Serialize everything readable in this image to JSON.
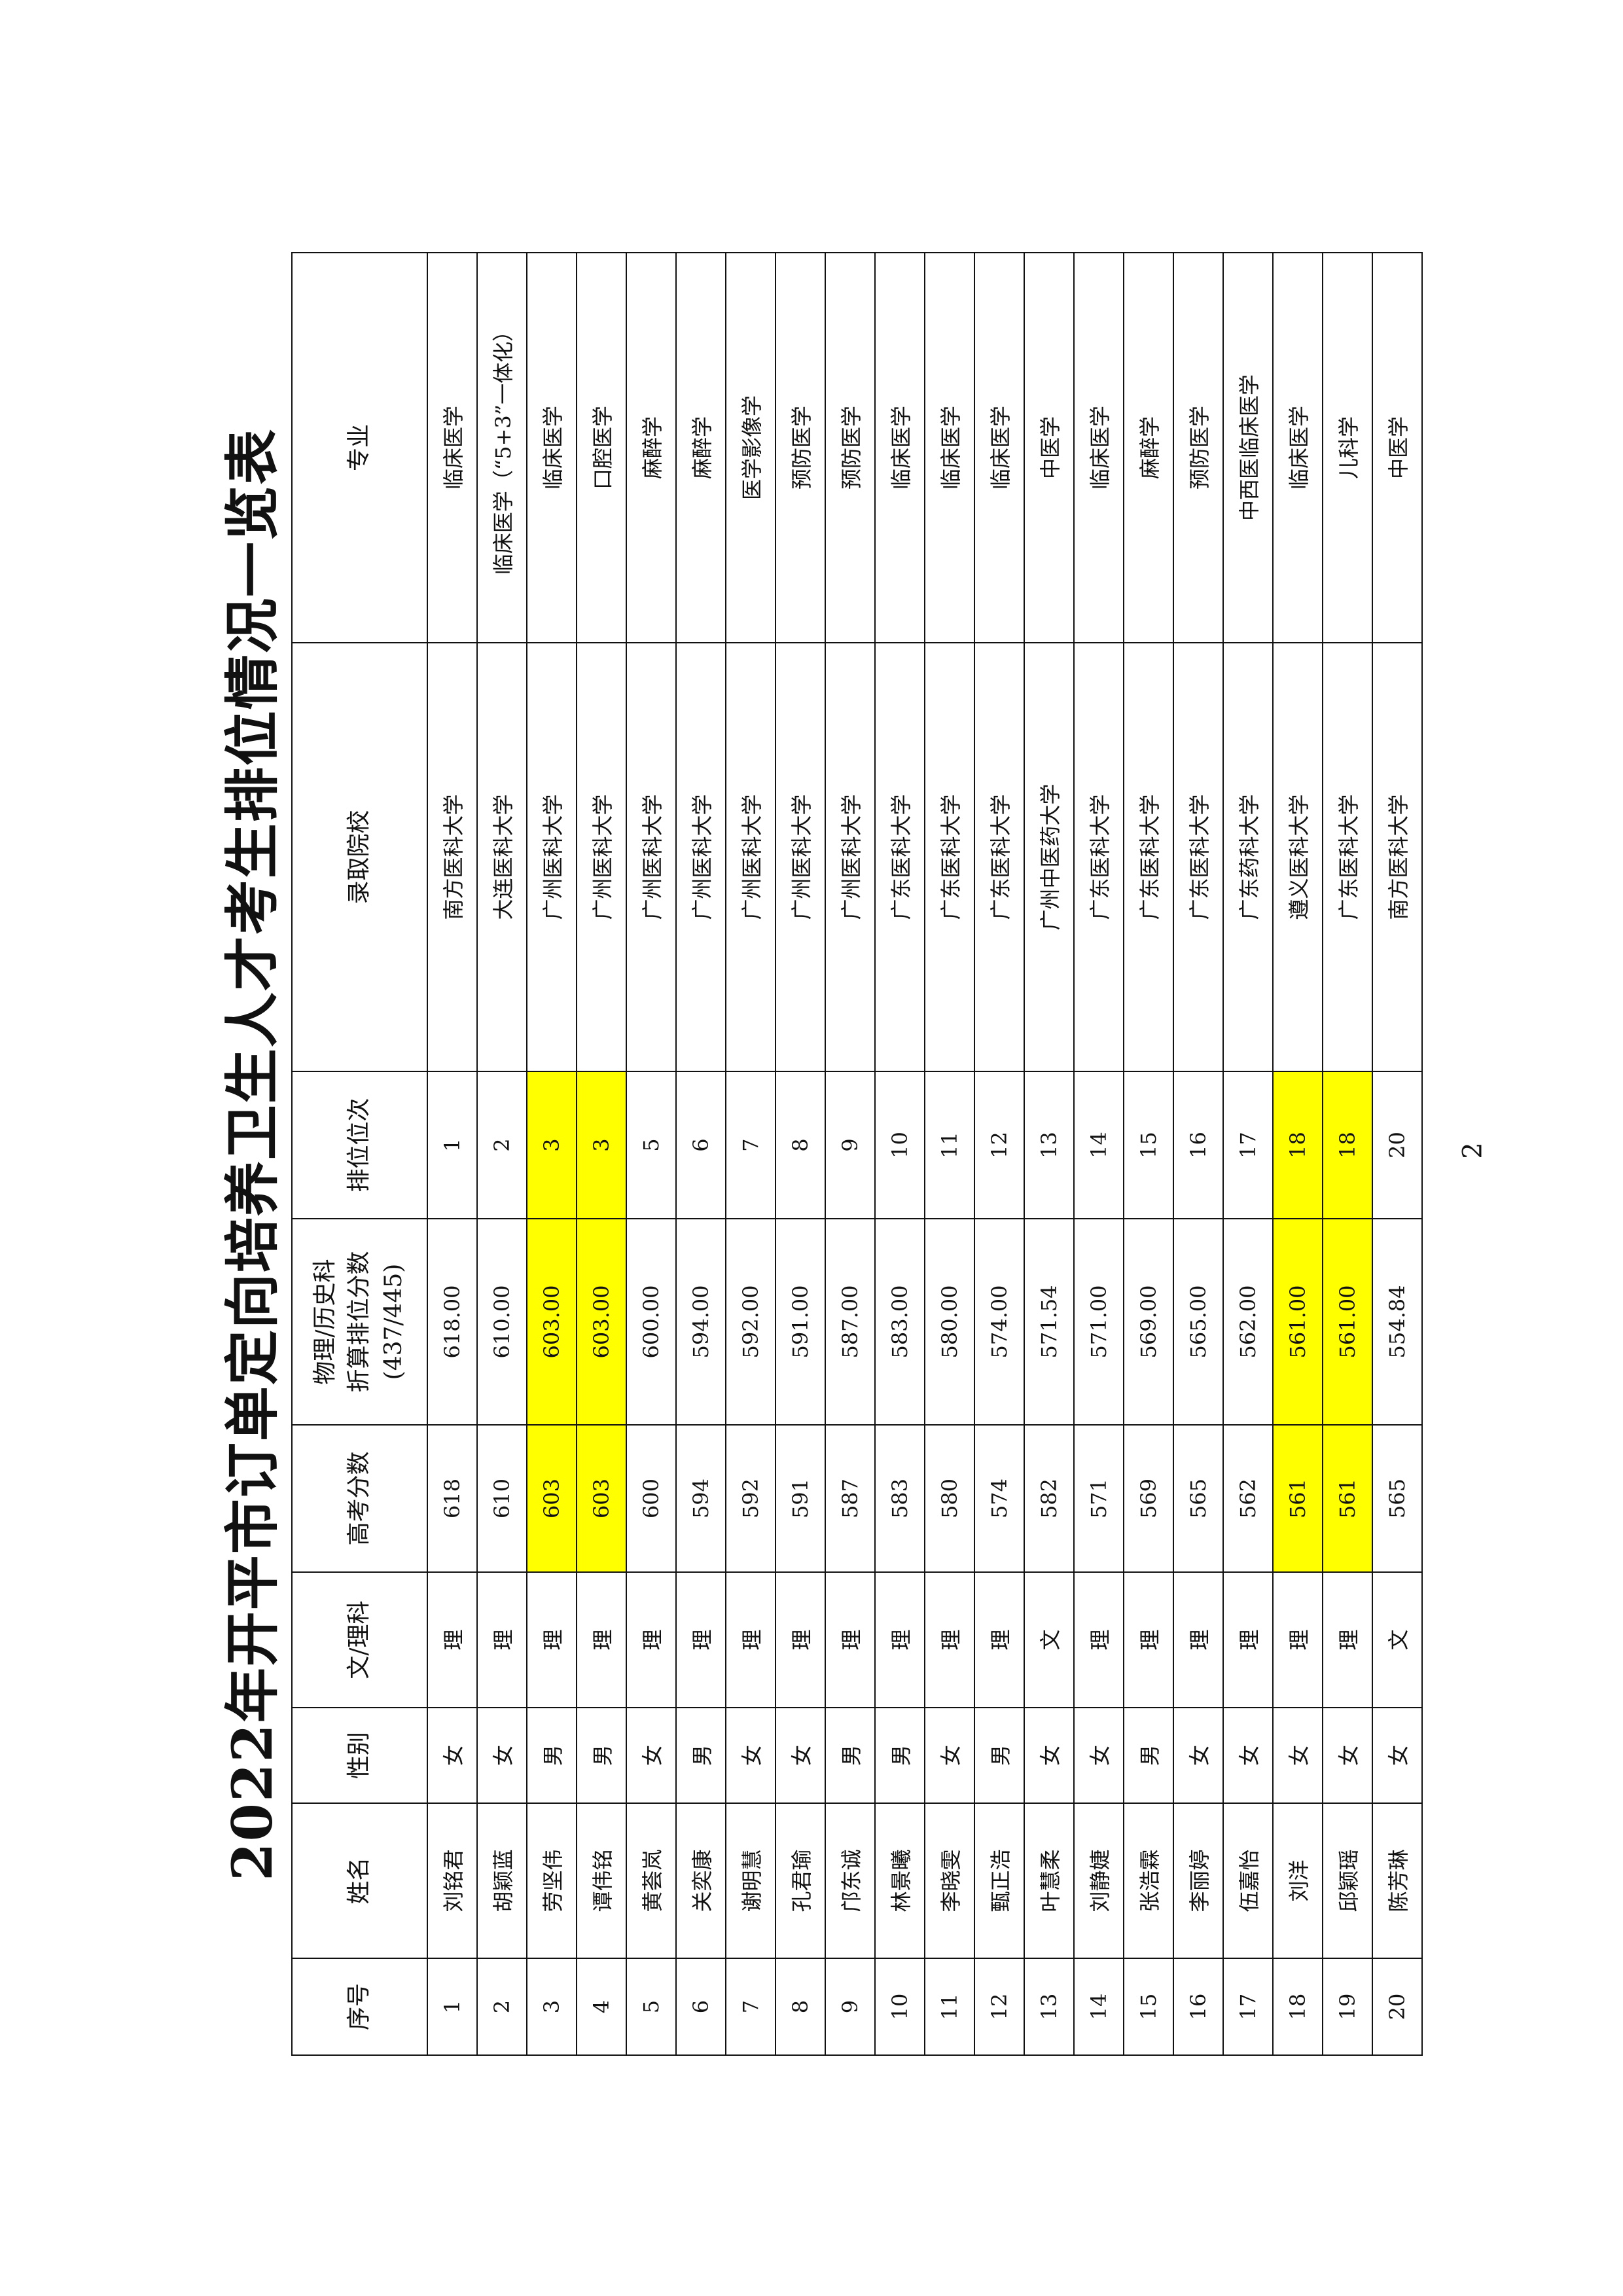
{
  "title": "2022年开平市订单定向培养卫生人才考生排位情况一览表",
  "page_number": "2",
  "highlight_color": "#ffff00",
  "headers": [
    "序号",
    "姓名",
    "性别",
    "文/理科",
    "高考分数",
    "物理/历史科折算排位分数(437/445)",
    "排位位次",
    "录取院校",
    "专业"
  ],
  "header_score_lines": [
    "物理/历史科",
    "折算排位分数",
    "(437/445)"
  ],
  "rows": [
    {
      "no": "1",
      "name": "刘铭君",
      "gender": "女",
      "track": "理",
      "score": "618",
      "converted": "618.00",
      "rank": "1",
      "school": "南方医科大学",
      "major": "临床医学",
      "highlight": false
    },
    {
      "no": "2",
      "name": "胡颖蓝",
      "gender": "女",
      "track": "理",
      "score": "610",
      "converted": "610.00",
      "rank": "2",
      "school": "大连医科大学",
      "major": "临床医学（“5+3”一体化）",
      "highlight": false
    },
    {
      "no": "3",
      "name": "劳坚伟",
      "gender": "男",
      "track": "理",
      "score": "603",
      "converted": "603.00",
      "rank": "3",
      "school": "广州医科大学",
      "major": "临床医学",
      "highlight": true
    },
    {
      "no": "4",
      "name": "谭伟铭",
      "gender": "男",
      "track": "理",
      "score": "603",
      "converted": "603.00",
      "rank": "3",
      "school": "广州医科大学",
      "major": "口腔医学",
      "highlight": true
    },
    {
      "no": "5",
      "name": "黄荟岚",
      "gender": "女",
      "track": "理",
      "score": "600",
      "converted": "600.00",
      "rank": "5",
      "school": "广州医科大学",
      "major": "麻醉学",
      "highlight": false
    },
    {
      "no": "6",
      "name": "关奕康",
      "gender": "男",
      "track": "理",
      "score": "594",
      "converted": "594.00",
      "rank": "6",
      "school": "广州医科大学",
      "major": "麻醉学",
      "highlight": false
    },
    {
      "no": "7",
      "name": "谢明慧",
      "gender": "女",
      "track": "理",
      "score": "592",
      "converted": "592.00",
      "rank": "7",
      "school": "广州医科大学",
      "major": "医学影像学",
      "highlight": false
    },
    {
      "no": "8",
      "name": "孔君瑜",
      "gender": "女",
      "track": "理",
      "score": "591",
      "converted": "591.00",
      "rank": "8",
      "school": "广州医科大学",
      "major": "预防医学",
      "highlight": false
    },
    {
      "no": "9",
      "name": "邝东诚",
      "gender": "男",
      "track": "理",
      "score": "587",
      "converted": "587.00",
      "rank": "9",
      "school": "广州医科大学",
      "major": "预防医学",
      "highlight": false
    },
    {
      "no": "10",
      "name": "林景曦",
      "gender": "男",
      "track": "理",
      "score": "583",
      "converted": "583.00",
      "rank": "10",
      "school": "广东医科大学",
      "major": "临床医学",
      "highlight": false
    },
    {
      "no": "11",
      "name": "李晓雯",
      "gender": "女",
      "track": "理",
      "score": "580",
      "converted": "580.00",
      "rank": "11",
      "school": "广东医科大学",
      "major": "临床医学",
      "highlight": false
    },
    {
      "no": "12",
      "name": "甄正浩",
      "gender": "男",
      "track": "理",
      "score": "574",
      "converted": "574.00",
      "rank": "12",
      "school": "广东医科大学",
      "major": "临床医学",
      "highlight": false
    },
    {
      "no": "13",
      "name": "叶慧柔",
      "gender": "女",
      "track": "文",
      "score": "582",
      "converted": "571.54",
      "rank": "13",
      "school": "广州中医药大学",
      "major": "中医学",
      "highlight": false
    },
    {
      "no": "14",
      "name": "刘静婕",
      "gender": "女",
      "track": "理",
      "score": "571",
      "converted": "571.00",
      "rank": "14",
      "school": "广东医科大学",
      "major": "临床医学",
      "highlight": false
    },
    {
      "no": "15",
      "name": "张浩霖",
      "gender": "男",
      "track": "理",
      "score": "569",
      "converted": "569.00",
      "rank": "15",
      "school": "广东医科大学",
      "major": "麻醉学",
      "highlight": false
    },
    {
      "no": "16",
      "name": "李丽婷",
      "gender": "女",
      "track": "理",
      "score": "565",
      "converted": "565.00",
      "rank": "16",
      "school": "广东医科大学",
      "major": "预防医学",
      "highlight": false
    },
    {
      "no": "17",
      "name": "伍嘉怡",
      "gender": "女",
      "track": "理",
      "score": "562",
      "converted": "562.00",
      "rank": "17",
      "school": "广东药科大学",
      "major": "中西医临床医学",
      "highlight": false
    },
    {
      "no": "18",
      "name": "刘洋",
      "gender": "女",
      "track": "理",
      "score": "561",
      "converted": "561.00",
      "rank": "18",
      "school": "遵义医科大学",
      "major": "临床医学",
      "highlight": true
    },
    {
      "no": "19",
      "name": "邱颖瑶",
      "gender": "女",
      "track": "理",
      "score": "561",
      "converted": "561.00",
      "rank": "18",
      "school": "广东医科大学",
      "major": "儿科学",
      "highlight": true
    },
    {
      "no": "20",
      "name": "陈芳琳",
      "gender": "女",
      "track": "文",
      "score": "565",
      "converted": "554.84",
      "rank": "20",
      "school": "南方医科大学",
      "major": "中医学",
      "highlight": false
    }
  ]
}
